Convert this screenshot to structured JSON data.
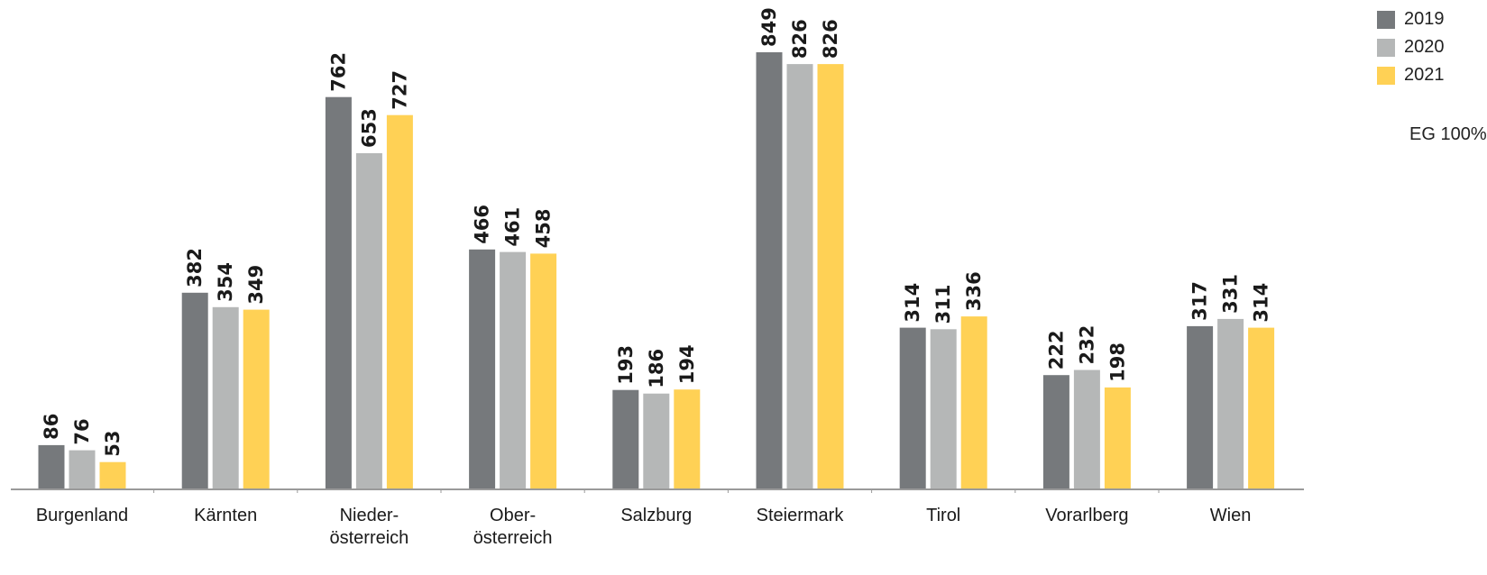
{
  "chart_data": {
    "type": "bar",
    "categories": [
      "Burgenland",
      "Kärnten",
      "Nieder-\nösterreich",
      "Ober-\nösterreich",
      "Salzburg",
      "Steiermark",
      "Tirol",
      "Vorarlberg",
      "Wien"
    ],
    "series": [
      {
        "name": "2019",
        "color": "#76797c",
        "values": [
          86,
          382,
          762,
          466,
          193,
          849,
          314,
          222,
          317
        ]
      },
      {
        "name": "2020",
        "color": "#b5b7b7",
        "values": [
          76,
          354,
          653,
          461,
          186,
          826,
          311,
          232,
          331
        ]
      },
      {
        "name": "2021",
        "color": "#ffd155",
        "values": [
          53,
          349,
          727,
          458,
          194,
          826,
          336,
          198,
          314
        ]
      }
    ],
    "ylim": [
      0,
      900
    ],
    "legend_position": "top-right",
    "grid": false,
    "note": "EG 100%"
  }
}
